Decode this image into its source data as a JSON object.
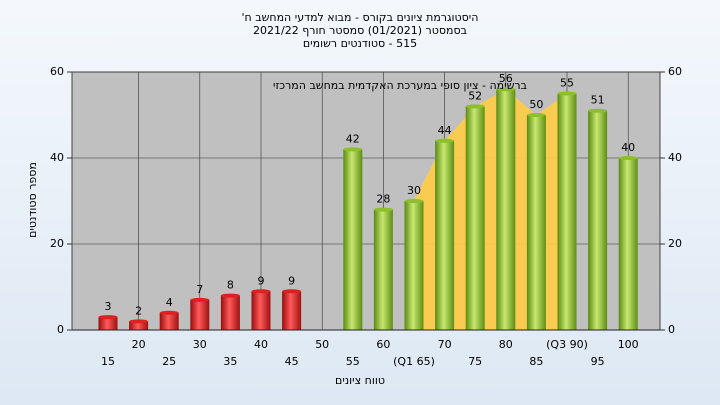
{
  "chart_data": {
    "type": "bar",
    "title": "היסטוגרמת ציונים בקורס - מבוא למדעי המחשב ח'",
    "subtitle": "בסמסטר  (01/2021)  סמסטר חורף 2021/22",
    "subtitle2": "515 - סטודנטים רשומים",
    "annotation": "ברשימה - ציון סופי במערכת האקדמית במחשב המרכזי",
    "ylabel": "מספר סטודנטים",
    "xlabel": "טווח ציונים",
    "categories": [
      "15",
      "20",
      "25",
      "30",
      "35",
      "40",
      "45",
      "50",
      "55",
      "60",
      "(Q1 65)",
      "70",
      "75",
      "80",
      "85",
      "(Q3 90)",
      "95",
      "100"
    ],
    "values": [
      3,
      2,
      4,
      7,
      8,
      9,
      9,
      null,
      42,
      28,
      30,
      44,
      52,
      56,
      50,
      55,
      51,
      40
    ],
    "colors": [
      "#e02020",
      "#8cbf2a"
    ],
    "ylim": [
      0,
      60
    ],
    "yticks": [
      0,
      20,
      40,
      60
    ],
    "y2lim": [
      0,
      60
    ],
    "y2ticks": [
      0,
      20,
      40,
      60
    ],
    "grid": true
  }
}
